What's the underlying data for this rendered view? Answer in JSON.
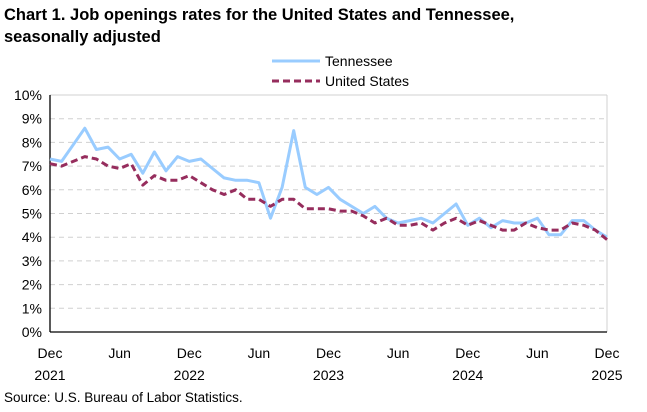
{
  "chart_data": {
    "type": "line",
    "title_line1": "Chart 1. Job openings rates for the United States and Tennessee,",
    "title_line2": "seasonally adjusted",
    "source": "Source: U.S. Bureau of Labor Statistics.",
    "ylim": [
      0,
      10
    ],
    "y_ticks": [
      "0%",
      "1%",
      "2%",
      "3%",
      "4%",
      "5%",
      "6%",
      "7%",
      "8%",
      "9%",
      "10%"
    ],
    "x_ticks": [
      {
        "month": "Dec",
        "year": "2021"
      },
      {
        "month": "Jun",
        "year": ""
      },
      {
        "month": "Dec",
        "year": "2022"
      },
      {
        "month": "Jun",
        "year": ""
      },
      {
        "month": "Dec",
        "year": "2023"
      },
      {
        "month": "Jun",
        "year": ""
      },
      {
        "month": "Dec",
        "year": "2024"
      },
      {
        "month": "Jun",
        "year": ""
      },
      {
        "month": "Dec",
        "year": "2025"
      }
    ],
    "x_range": [
      "Dec 2021",
      "Dec 2025"
    ],
    "grid": "horizontal dashed",
    "legend_placement": "top-center",
    "series": [
      {
        "name": "Tennessee",
        "color": "#99CCFF",
        "style": "solid",
        "values": [
          7.3,
          7.2,
          7.9,
          8.6,
          7.7,
          7.8,
          7.3,
          7.5,
          6.7,
          7.6,
          6.8,
          7.4,
          7.2,
          7.3,
          6.9,
          6.5,
          6.4,
          6.4,
          6.3,
          4.8,
          6.1,
          8.5,
          6.1,
          5.8,
          6.1,
          5.6,
          5.3,
          5.0,
          5.3,
          4.8,
          4.6,
          4.7,
          4.8,
          4.6,
          5.0,
          5.4,
          4.5,
          4.8,
          4.4,
          4.7,
          4.6,
          4.6,
          4.8,
          4.1,
          4.1,
          4.7,
          4.7,
          4.3,
          4.0
        ]
      },
      {
        "name": "United States",
        "color": "#962D5D",
        "style": "dashed",
        "values": [
          7.1,
          7.0,
          7.2,
          7.4,
          7.3,
          7.0,
          6.9,
          7.1,
          6.2,
          6.6,
          6.4,
          6.4,
          6.6,
          6.3,
          6.0,
          5.8,
          6.0,
          5.6,
          5.6,
          5.3,
          5.6,
          5.6,
          5.2,
          5.2,
          5.2,
          5.1,
          5.1,
          4.9,
          4.6,
          4.8,
          4.5,
          4.5,
          4.6,
          4.3,
          4.6,
          4.8,
          4.5,
          4.7,
          4.5,
          4.3,
          4.3,
          4.6,
          4.4,
          4.3,
          4.3,
          4.6,
          4.5,
          4.3,
          3.9
        ]
      }
    ]
  }
}
